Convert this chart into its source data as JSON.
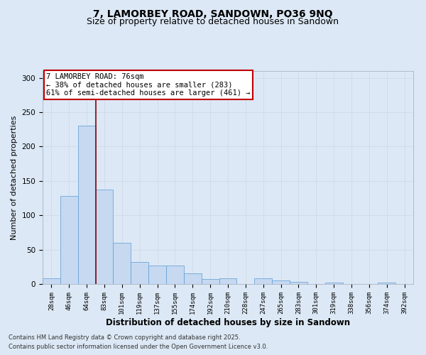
{
  "title1": "7, LAMORBEY ROAD, SANDOWN, PO36 9NQ",
  "title2": "Size of property relative to detached houses in Sandown",
  "xlabel": "Distribution of detached houses by size in Sandown",
  "ylabel": "Number of detached properties",
  "bar_labels": [
    "28sqm",
    "46sqm",
    "64sqm",
    "83sqm",
    "101sqm",
    "119sqm",
    "137sqm",
    "155sqm",
    "174sqm",
    "192sqm",
    "210sqm",
    "228sqm",
    "247sqm",
    "265sqm",
    "283sqm",
    "301sqm",
    "319sqm",
    "338sqm",
    "356sqm",
    "374sqm",
    "392sqm"
  ],
  "bar_values": [
    8,
    128,
    230,
    137,
    60,
    32,
    27,
    27,
    15,
    7,
    8,
    0,
    8,
    5,
    3,
    0,
    2,
    0,
    0,
    2,
    0
  ],
  "bar_color": "#c6d9f1",
  "bar_edge_color": "#5b9bd5",
  "grid_color": "#d0d8e4",
  "vline_x": 2.5,
  "vline_color": "#8b0000",
  "annotation_box_text": "7 LAMORBEY ROAD: 76sqm\n← 38% of detached houses are smaller (283)\n61% of semi-detached houses are larger (461) →",
  "annotation_box_color": "#c00000",
  "annotation_box_bg": "#ffffff",
  "footer1": "Contains HM Land Registry data © Crown copyright and database right 2025.",
  "footer2": "Contains public sector information licensed under the Open Government Licence v3.0.",
  "ylim": [
    0,
    310
  ],
  "yticks": [
    0,
    50,
    100,
    150,
    200,
    250,
    300
  ],
  "bg_color": "#dce8f5",
  "plot_bg_color": "#dce8f5",
  "title_fontsize": 10,
  "subtitle_fontsize": 9,
  "tick_fontsize": 6.5,
  "xlabel_fontsize": 8.5,
  "ylabel_fontsize": 8,
  "annotation_fontsize": 7.5
}
